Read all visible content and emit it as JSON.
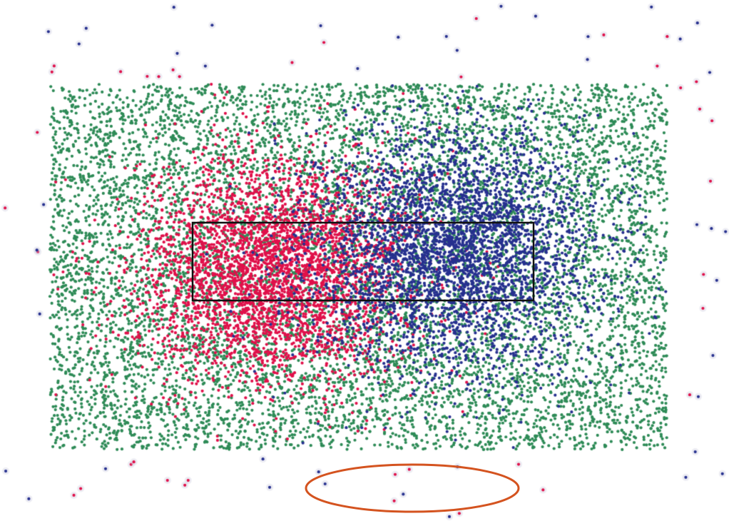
{
  "figure": {
    "background": "#ffffff",
    "point_classes": [
      {
        "id": "green",
        "color": "#2e8b57"
      },
      {
        "id": "red",
        "color": "#e0104a"
      },
      {
        "id": "blue",
        "color": "#26308f"
      }
    ],
    "scattered_outliers": {
      "colors": [
        "#e0104a",
        "#26308f"
      ]
    },
    "highlight_rectangle": {
      "stroke": "#111111"
    },
    "highlight_ellipse": {
      "stroke": "#d4531f"
    }
  }
}
